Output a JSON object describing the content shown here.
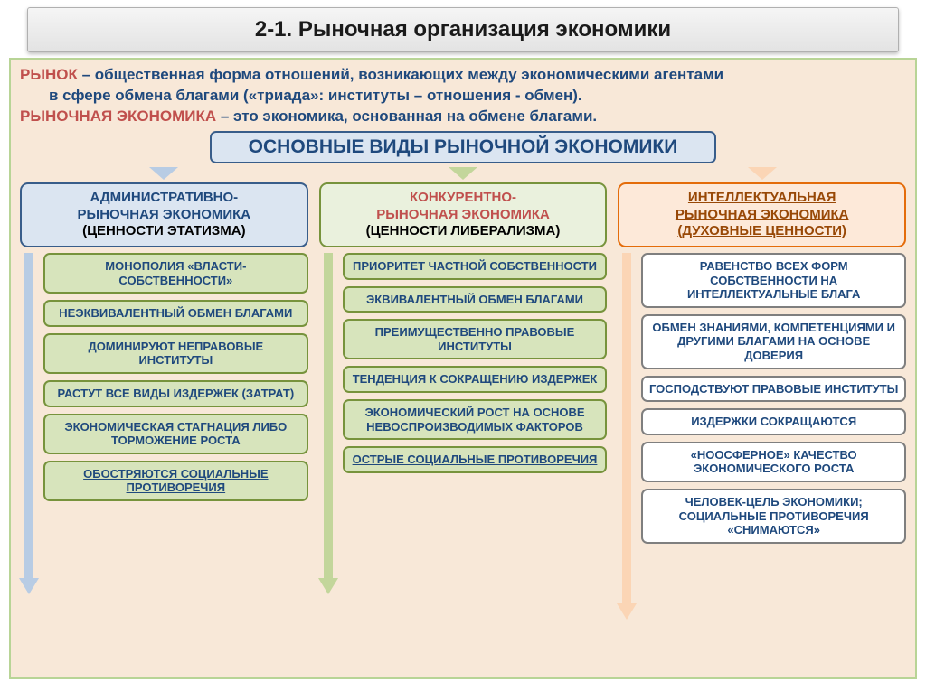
{
  "title": "2-1. Рыночная организация экономики",
  "definitions": {
    "term1": "РЫНОК",
    "def1a": " – общественная форма отношений, возникающих между экономическими агентами",
    "def1b": "в сфере обмена благами («триада»: институты – отношения - обмен).",
    "term2": "РЫНОЧНАЯ ЭКОНОМИКА",
    "def2": " – это экономика, основанная на обмене благами."
  },
  "types_header": "ОСНОВНЫЕ   ВИДЫ   РЫНОЧНОЙ   ЭКОНОМИКИ",
  "colors": {
    "panel_bg": "#f8e8d8",
    "panel_border": "#b8d496",
    "types_bg": "#dbe5f1",
    "types_border": "#385d8a",
    "text_blue": "#1f497d",
    "text_red": "#c0504d",
    "col1_hdr_bg": "#dbe5f1",
    "col1_hdr_border": "#385d8a",
    "col1_arrow": "#b8cce4",
    "col1_item_bg": "#d7e4bc",
    "col1_item_border": "#77933c",
    "col2_hdr_bg": "#eaf1dd",
    "col2_hdr_border": "#77933c",
    "col2_arrow": "#c3d69b",
    "col2_item_bg": "#d7e4bc",
    "col2_item_border": "#77933c",
    "col3_hdr_bg": "#fde9d9",
    "col3_hdr_border": "#e46c0a",
    "col3_arrow": "#fbd5b5",
    "col3_item_bg": "#ffffff",
    "col3_item_border": "#7f7f7f"
  },
  "columns": [
    {
      "header_l1": "АДМИНИСТРАТИВНО-",
      "header_l2": "РЫНОЧНАЯ ЭКОНОМИКА",
      "header_l3": "(ЦЕННОСТИ ЭТАТИЗМА)",
      "hdr_text_color": "#1f497d",
      "hdr_sub_color": "#000000",
      "underline": false,
      "items": [
        "МОНОПОЛИЯ «ВЛАСТИ-СОБСТВЕННОСТИ»",
        "НЕЭКВИВАЛЕНТНЫЙ ОБМЕН БЛАГАМИ",
        "ДОМИНИРУЮТ НЕПРАВОВЫЕ ИНСТИТУТЫ",
        "РАСТУТ ВСЕ ВИДЫ ИЗДЕРЖЕК (ЗАТРАТ)",
        "ЭКОНОМИЧЕСКАЯ СТАГНАЦИЯ ЛИБО ТОРМОЖЕНИЕ РОСТА",
        "ОБОСТРЯЮТСЯ СОЦИАЛЬНЫЕ ПРОТИВОРЕЧИЯ"
      ],
      "final_underline_index": 5,
      "arrow_height": 378
    },
    {
      "header_l1": "КОНКУРЕНТНО-",
      "header_l2": "РЫНОЧНАЯ ЭКОНОМИКА",
      "header_l3": "(ЦЕННОСТИ ЛИБЕРАЛИЗМА)",
      "hdr_text_color": "#c0504d",
      "hdr_sub_color": "#000000",
      "underline": false,
      "items": [
        "ПРИОРИТЕТ ЧАСТНОЙ СОБСТВЕННОСТИ",
        "ЭКВИВАЛЕНТНЫЙ ОБМЕН БЛАГАМИ",
        "ПРЕИМУЩЕСТВЕННО ПРАВОВЫЕ ИНСТИТУТЫ",
        "ТЕНДЕНЦИЯ К СОКРАЩЕНИЮ ИЗДЕРЖЕК",
        "ЭКОНОМИЧЕСКИЙ РОСТ НА ОСНОВЕ НЕВОСПРОИЗВОДИМЫХ ФАКТОРОВ",
        "ОСТРЫЕ СОЦИАЛЬНЫЕ ПРОТИВОРЕЧИЯ"
      ],
      "final_underline_index": 5,
      "arrow_height": 378
    },
    {
      "header_l1": "ИНТЕЛЛЕКТУАЛЬНАЯ",
      "header_l2": "РЫНОЧНАЯ ЭКОНОМИКА",
      "header_l3": "(ДУХОВНЫЕ ЦЕННОСТИ)",
      "hdr_text_color": "#984806",
      "hdr_sub_color": "#984806",
      "underline": true,
      "items": [
        "РАВЕНСТВО ВСЕХ ФОРМ СОБСТВЕННОСТИ НА ИНТЕЛЛЕКТУАЛЬНЫЕ БЛАГА",
        "ОБМЕН ЗНАНИЯМИ, КОМПЕТЕНЦИЯМИ И ДРУГИМИ БЛАГАМИ НА ОСНОВЕ ДОВЕРИЯ",
        "ГОСПОДСТВУЮТ ПРАВОВЫЕ ИНСТИТУТЫ",
        "ИЗДЕРЖКИ СОКРАЩАЮТСЯ",
        "«НООСФЕРНОЕ» КАЧЕСТВО ЭКОНОМИЧЕСКОГО РОСТА",
        "ЧЕЛОВЕК-ЦЕЛЬ ЭКОНОМИКИ; СОЦИАЛЬНЫЕ ПРОТИВОРЕЧИЯ «СНИМАЮТСЯ»"
      ],
      "final_underline_index": -1,
      "arrow_height": 406
    }
  ]
}
